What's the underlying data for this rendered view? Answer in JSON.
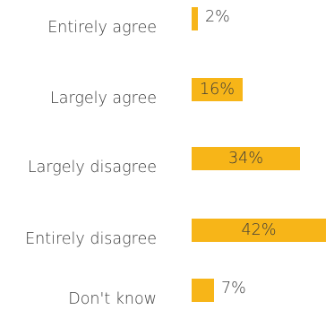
{
  "chart_data": {
    "type": "bar",
    "orientation": "horizontal",
    "categories": [
      "Entirely agree",
      "Largely agree",
      "Largely disagree",
      "Entirely disagree",
      "Don't know"
    ],
    "values": [
      2,
      16,
      34,
      42,
      7
    ],
    "value_labels": [
      "2%",
      "16%",
      "34%",
      "42%",
      "7%"
    ],
    "title": "",
    "xlabel": "",
    "ylabel": "",
    "xlim": [
      0,
      42
    ],
    "grid": false,
    "legend": "none",
    "bar_color": "#f7b518",
    "text_color": "#3b3b3b"
  }
}
